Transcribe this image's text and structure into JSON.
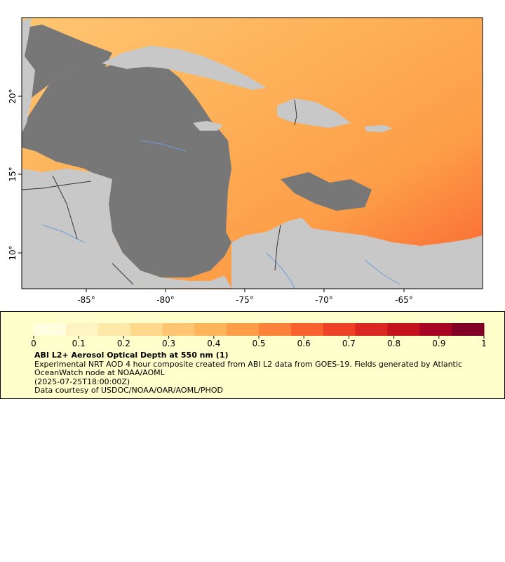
{
  "map": {
    "x_ticks": [
      "-85°",
      "-80°",
      "-75°",
      "-70°",
      "-65°"
    ],
    "y_ticks": [
      "20°",
      "15°",
      "10°"
    ],
    "colors": {
      "ocean": "#777777",
      "land": "#c8c8c8",
      "rivers": "#6a9ed8",
      "borders": "#333333",
      "aod_low": "#ffffcc",
      "aod_high": "#800026"
    }
  },
  "legend": {
    "ticks": [
      "0",
      "0.1",
      "0.2",
      "0.3",
      "0.4",
      "0.5",
      "0.6",
      "0.7",
      "0.8",
      "0.9",
      "1"
    ],
    "colors": [
      "#ffffe0",
      "#fff4c2",
      "#ffe9a8",
      "#fed98c",
      "#fec672",
      "#feb45a",
      "#fd9d48",
      "#fc823c",
      "#f9612f",
      "#ee4126",
      "#dc2622",
      "#c4121f",
      "#a80424",
      "#800026"
    ],
    "title": "ABI L2+ Aerosol Optical Depth at 550 nm (1)",
    "description": "Experimental NRT AOD 4 hour composite created from ABI L2 data from GOES-19. Fields generated by Atlantic OceanWatch node at NOAA/AOML",
    "time": "(2025-07-25T18:00:00Z)",
    "credit": "Data courtesy of USDOC/NOAA/OAR/AOML/PHOD"
  }
}
